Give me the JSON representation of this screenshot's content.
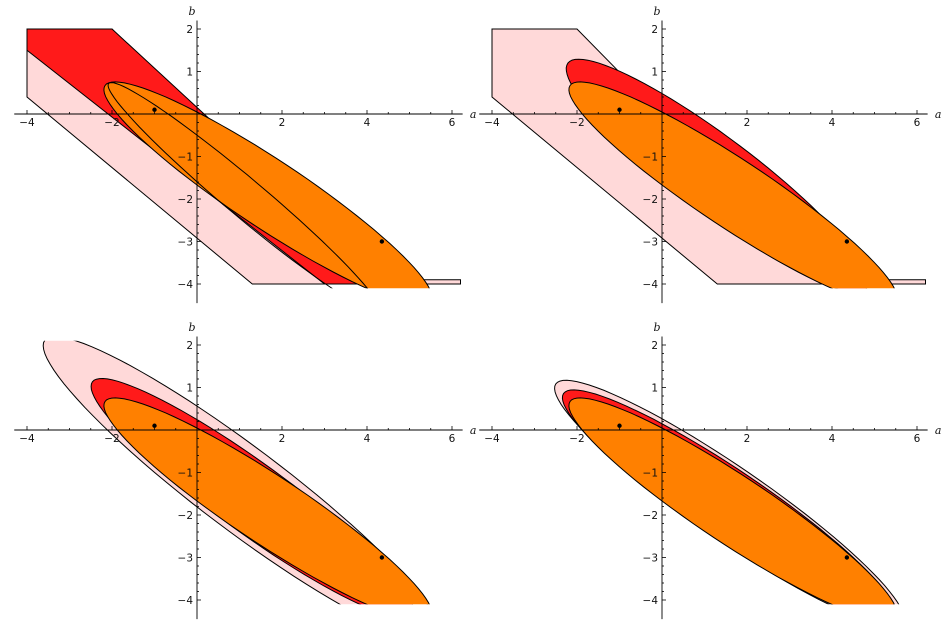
{
  "figure": {
    "axis_labels": {
      "x": "a",
      "y": "b"
    },
    "x_ticks": [
      {
        "value": -4,
        "label": "−4"
      },
      {
        "value": -2,
        "label": "−2"
      },
      {
        "value": 2,
        "label": "2"
      },
      {
        "value": 4,
        "label": "4"
      },
      {
        "value": 6,
        "label": "6"
      }
    ],
    "y_ticks": [
      {
        "value": 2,
        "label": "2"
      },
      {
        "value": 1,
        "label": "1"
      },
      {
        "value": -1,
        "label": "−1"
      },
      {
        "value": -2,
        "label": "−2"
      },
      {
        "value": -3,
        "label": "−3"
      },
      {
        "value": -4,
        "label": "−4"
      }
    ],
    "xlim": [
      -4.2,
      6.3
    ],
    "ylim": [
      -4.1,
      2.1
    ],
    "points": [
      {
        "a": -1.0,
        "b": 0.1
      },
      {
        "a": 4.35,
        "b": -3.0
      }
    ],
    "colors": {
      "pink": "#ffd9d9",
      "red": "#ff1a1a",
      "orange": "#ff8000",
      "point": "#000000"
    }
  },
  "panels": [
    {
      "id": "top-left",
      "regions": [
        {
          "role": "outer",
          "color": "pink",
          "shape": "polygon",
          "points": [
            [
              -4.0,
              2.0
            ],
            [
              -2.0,
              2.0
            ],
            [
              3.8,
              -3.9
            ],
            [
              6.2,
              -3.9
            ],
            [
              6.2,
              -4.0
            ],
            [
              1.3,
              -4.0
            ],
            [
              -4.0,
              0.4
            ]
          ]
        },
        {
          "role": "middle",
          "color": "red",
          "shape": "polygon",
          "points": [
            [
              -4.0,
              2.0
            ],
            [
              -2.0,
              2.0
            ],
            [
              4.5,
              -4.0
            ],
            [
              3.0,
              -4.0
            ],
            [
              -4.0,
              1.5
            ]
          ]
        },
        {
          "role": "inner",
          "color": "orange",
          "shape": "ellipse",
          "center": [
            1.67,
            -1.87
          ],
          "axes": [
            4.6,
            0.8
          ],
          "angle_deg": -33.5
        }
      ],
      "curves": [
        {
          "center": [
            1.1,
            -1.95
          ],
          "axes": [
            4.15,
            0.45
          ],
          "angle_deg": -40
        }
      ]
    },
    {
      "id": "top-right",
      "regions": [
        {
          "role": "outer",
          "color": "pink",
          "shape": "polygon",
          "points": [
            [
              -4.0,
              2.0
            ],
            [
              -2.0,
              2.0
            ],
            [
              3.8,
              -3.9
            ],
            [
              6.2,
              -3.9
            ],
            [
              6.2,
              -4.0
            ],
            [
              1.3,
              -4.0
            ],
            [
              -4.0,
              0.4
            ]
          ]
        },
        {
          "role": "middle",
          "color": "red",
          "shape": "ellipse",
          "center": [
            1.3,
            -1.45
          ],
          "axes": [
            4.4,
            0.88
          ],
          "angle_deg": -37
        },
        {
          "role": "inner",
          "color": "orange",
          "shape": "ellipse",
          "center": [
            1.67,
            -1.87
          ],
          "axes": [
            4.6,
            0.8
          ],
          "angle_deg": -33.5
        }
      ],
      "curves": []
    },
    {
      "id": "bottom-left",
      "regions": [
        {
          "role": "outer",
          "color": "pink",
          "shape": "ellipse",
          "center": [
            1.05,
            -1.38
          ],
          "axes": [
            5.8,
            0.98
          ],
          "angle_deg": -37
        },
        {
          "role": "middle",
          "color": "red",
          "shape": "ellipse",
          "center": [
            1.3,
            -1.6
          ],
          "axes": [
            4.65,
            0.82
          ],
          "angle_deg": -36
        },
        {
          "role": "inner",
          "color": "orange",
          "shape": "ellipse",
          "center": [
            1.67,
            -1.87
          ],
          "axes": [
            4.6,
            0.8
          ],
          "angle_deg": -33.5
        }
      ],
      "curves": []
    },
    {
      "id": "bottom-right",
      "regions": [
        {
          "role": "outer",
          "color": "pink",
          "shape": "ellipse",
          "center": [
            1.58,
            -1.72
          ],
          "axes": [
            4.95,
            0.85
          ],
          "angle_deg": -34.5
        },
        {
          "role": "middle",
          "color": "red",
          "shape": "ellipse",
          "center": [
            1.58,
            -1.77
          ],
          "axes": [
            4.7,
            0.82
          ],
          "angle_deg": -34
        },
        {
          "role": "inner",
          "color": "orange",
          "shape": "ellipse",
          "center": [
            1.67,
            -1.87
          ],
          "axes": [
            4.6,
            0.8
          ],
          "angle_deg": -33.5
        }
      ],
      "curves": []
    }
  ]
}
